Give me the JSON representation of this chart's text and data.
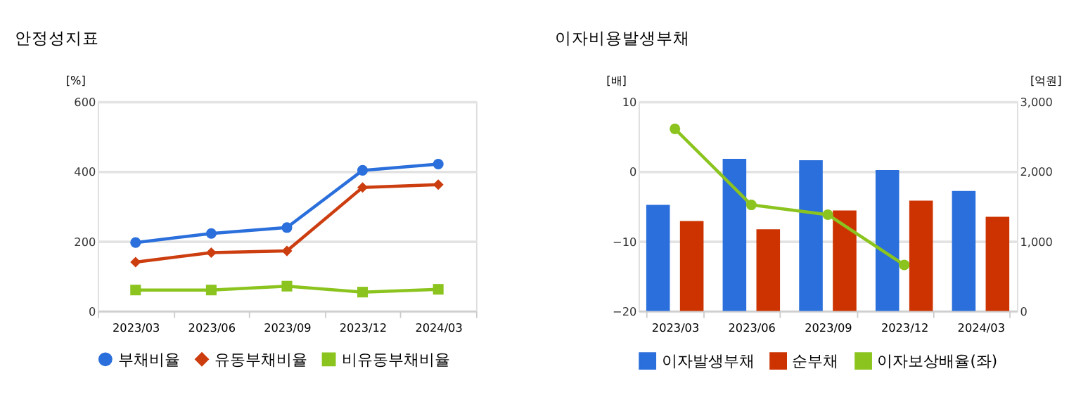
{
  "chart_data": [
    {
      "type": "line",
      "title": "안정성지표",
      "ylabel": "[%]",
      "categories": [
        "2023/03",
        "2023/06",
        "2023/09",
        "2023/12",
        "2024/03"
      ],
      "series": [
        {
          "name": "부채비율",
          "color": "#2a6fdb",
          "marker": "circle",
          "values": [
            196,
            222,
            239,
            403,
            421
          ]
        },
        {
          "name": "유동부채비율",
          "color": "#cc3d0f",
          "marker": "diamond",
          "values": [
            140,
            167,
            172,
            354,
            362
          ]
        },
        {
          "name": "비유동부채비율",
          "color": "#8cc41f",
          "marker": "square",
          "values": [
            60,
            60,
            71,
            54,
            62
          ]
        }
      ],
      "ylim": [
        0,
        600
      ],
      "yticks": [
        0,
        200,
        400,
        600
      ],
      "grid": "y",
      "legend": "bottom",
      "line_style": "solid"
    },
    {
      "type": "bar",
      "title": "이자비용발생부채",
      "ylabel": "[배]",
      "y2label": "[억원]",
      "categories": [
        "2023/03",
        "2023/06",
        "2023/09",
        "2023/12",
        "2024/03"
      ],
      "series": [
        {
          "name": "이자발생부채",
          "color": "#2a6fdb",
          "axis": "y2",
          "values": [
            1520,
            2180,
            2160,
            2020,
            1720
          ]
        },
        {
          "name": "순부채",
          "color": "#cc3300",
          "axis": "y2",
          "values": [
            1290,
            1170,
            1440,
            1580,
            1350
          ]
        },
        {
          "name": "이자보상배율(좌)",
          "color": "#8cc41f",
          "type": "line",
          "marker": "circle",
          "axis": "y",
          "values": [
            6.1,
            -4.8,
            -6.2,
            -13.4,
            null
          ]
        }
      ],
      "ylim": [
        -20,
        10
      ],
      "yticks": [
        -20,
        -10,
        0,
        10
      ],
      "y2lim": [
        0,
        3000
      ],
      "y2ticks": [
        0,
        {
          "value": 1000,
          "label": "1,000"
        },
        {
          "value": 2000,
          "label": "2,000"
        },
        {
          "value": 3000,
          "label": "3,000"
        }
      ],
      "grid": "y",
      "legend": "bottom"
    }
  ]
}
